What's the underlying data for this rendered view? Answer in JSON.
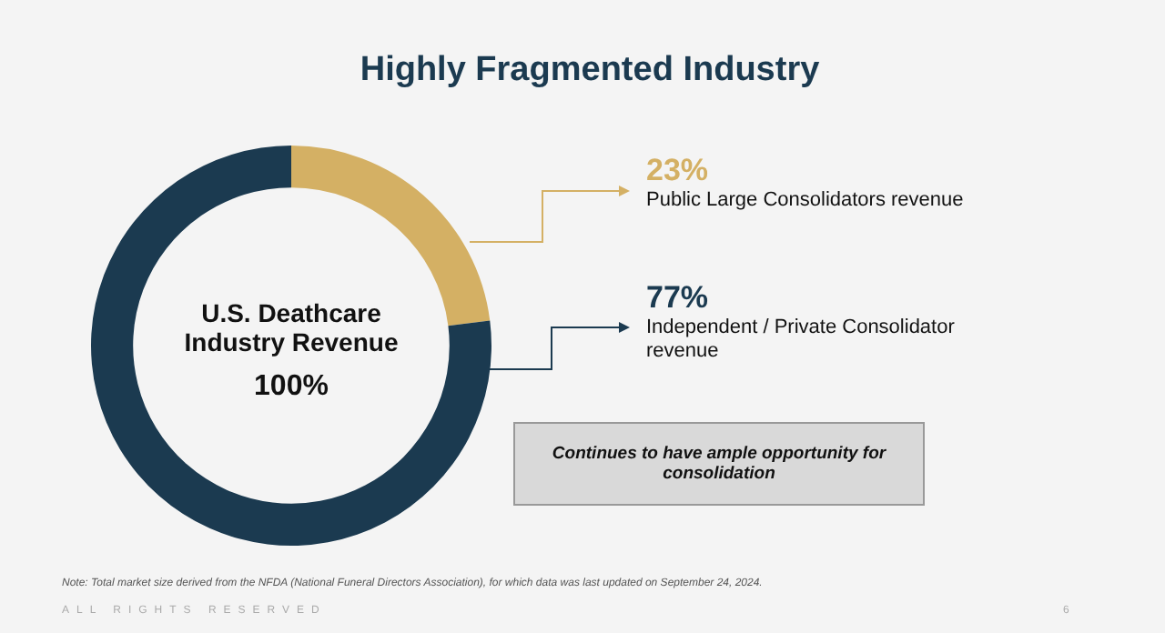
{
  "chart_data": {
    "type": "donut",
    "title": "Highly Fragmented Industry",
    "categories": [
      "Public Large Consolidators revenue",
      "Independent / Private Consolidator revenue"
    ],
    "values": [
      23,
      77
    ],
    "colors": [
      "#d4b064",
      "#1b3a50"
    ],
    "value_labels": [
      "23%",
      "77%"
    ],
    "legend": "right",
    "annotations": [
      "U.S. Deathcare Industry Revenue",
      "100%",
      "Continues to have ample opportunity for consolidation",
      "Note: Total market size derived from the NFDA (National Funeral Directors Association), for which data was last updated on September 24, 2024.",
      "ALL RIGHTS RESERVED",
      "6"
    ]
  }
}
